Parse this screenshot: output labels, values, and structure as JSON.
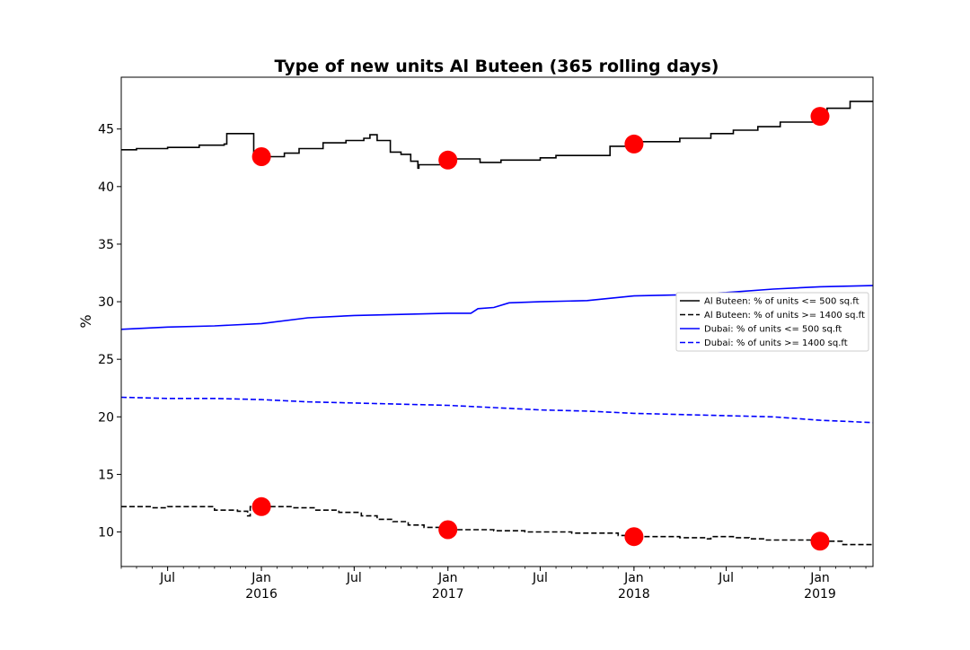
{
  "chart_data": {
    "type": "line",
    "title": "Type of new units Al Buteen (365 rolling days)",
    "xlabel": "",
    "ylabel": "%",
    "xlim": [
      "2015-04-01",
      "2019-04-15"
    ],
    "ylim": [
      7,
      49.5
    ],
    "grid": false,
    "legend_position": "center-right",
    "x_ticks": [
      {
        "date": "2015-07-01",
        "label": "Jul"
      },
      {
        "date": "2016-01-01",
        "label": "Jan\n2016"
      },
      {
        "date": "2016-07-01",
        "label": "Jul"
      },
      {
        "date": "2017-01-01",
        "label": "Jan\n2017"
      },
      {
        "date": "2017-07-01",
        "label": "Jul"
      },
      {
        "date": "2018-01-01",
        "label": "Jan\n2018"
      },
      {
        "date": "2018-07-01",
        "label": "Jul"
      },
      {
        "date": "2019-01-01",
        "label": "Jan\n2019"
      }
    ],
    "y_ticks": [
      10,
      15,
      20,
      25,
      30,
      35,
      40,
      45
    ],
    "series": [
      {
        "name": "Al Buteen: % of units <= 500 sq.ft",
        "color": "#000000",
        "style": "solid",
        "step": true,
        "points": [
          [
            "2015-04-01",
            43.2
          ],
          [
            "2015-05-01",
            43.3
          ],
          [
            "2015-07-01",
            43.4
          ],
          [
            "2015-09-01",
            43.6
          ],
          [
            "2015-10-20",
            43.7
          ],
          [
            "2015-10-25",
            44.6
          ],
          [
            "2015-12-15",
            44.6
          ],
          [
            "2015-12-17",
            42.6
          ],
          [
            "2016-01-10",
            42.6
          ],
          [
            "2016-02-15",
            42.9
          ],
          [
            "2016-03-15",
            43.3
          ],
          [
            "2016-05-01",
            43.8
          ],
          [
            "2016-06-15",
            44.0
          ],
          [
            "2016-07-20",
            44.2
          ],
          [
            "2016-08-01",
            44.5
          ],
          [
            "2016-08-15",
            44.0
          ],
          [
            "2016-09-10",
            43.0
          ],
          [
            "2016-10-01",
            42.8
          ],
          [
            "2016-10-20",
            42.2
          ],
          [
            "2016-11-03",
            41.6
          ],
          [
            "2016-11-05",
            41.9
          ],
          [
            "2016-12-31",
            41.9
          ],
          [
            "2017-01-10",
            42.4
          ],
          [
            "2017-03-01",
            42.4
          ],
          [
            "2017-03-05",
            42.1
          ],
          [
            "2017-04-15",
            42.3
          ],
          [
            "2017-07-01",
            42.5
          ],
          [
            "2017-08-01",
            42.7
          ],
          [
            "2017-11-10",
            42.7
          ],
          [
            "2017-11-15",
            43.5
          ],
          [
            "2017-12-31",
            43.6
          ],
          [
            "2018-01-15",
            43.9
          ],
          [
            "2018-04-01",
            44.2
          ],
          [
            "2018-06-01",
            44.6
          ],
          [
            "2018-07-15",
            44.9
          ],
          [
            "2018-09-01",
            45.2
          ],
          [
            "2018-10-15",
            45.6
          ],
          [
            "2018-12-31",
            45.8
          ],
          [
            "2019-01-01",
            46.0
          ],
          [
            "2019-01-15",
            46.8
          ],
          [
            "2019-03-01",
            47.4
          ],
          [
            "2019-04-15",
            47.4
          ]
        ]
      },
      {
        "name": "Al Buteen: % of units >= 1400 sq.ft",
        "color": "#000000",
        "style": "dashed",
        "step": true,
        "points": [
          [
            "2015-04-01",
            12.2
          ],
          [
            "2015-06-01",
            12.1
          ],
          [
            "2015-07-01",
            12.2
          ],
          [
            "2015-09-15",
            12.2
          ],
          [
            "2015-10-01",
            11.9
          ],
          [
            "2015-11-15",
            11.8
          ],
          [
            "2015-12-05",
            11.4
          ],
          [
            "2015-12-10",
            12.2
          ],
          [
            "2016-01-10",
            12.2
          ],
          [
            "2016-03-01",
            12.1
          ],
          [
            "2016-04-15",
            11.9
          ],
          [
            "2016-06-01",
            11.7
          ],
          [
            "2016-07-15",
            11.4
          ],
          [
            "2016-08-15",
            11.1
          ],
          [
            "2016-09-15",
            10.9
          ],
          [
            "2016-10-15",
            10.6
          ],
          [
            "2016-11-15",
            10.4
          ],
          [
            "2016-12-31",
            10.3
          ],
          [
            "2017-01-15",
            10.2
          ],
          [
            "2017-04-01",
            10.1
          ],
          [
            "2017-06-01",
            10.0
          ],
          [
            "2017-09-01",
            9.9
          ],
          [
            "2017-12-01",
            9.7
          ],
          [
            "2018-01-15",
            9.6
          ],
          [
            "2018-04-01",
            9.5
          ],
          [
            "2018-05-25",
            9.4
          ],
          [
            "2018-06-01",
            9.6
          ],
          [
            "2018-07-15",
            9.5
          ],
          [
            "2018-08-15",
            9.4
          ],
          [
            "2018-09-15",
            9.3
          ],
          [
            "2019-01-01",
            9.2
          ],
          [
            "2019-02-15",
            8.9
          ],
          [
            "2019-04-15",
            8.9
          ]
        ]
      },
      {
        "name": "Dubai: % of units <= 500 sq.ft",
        "color": "#0000ff",
        "style": "solid",
        "step": false,
        "points": [
          [
            "2015-04-01",
            27.6
          ],
          [
            "2015-07-01",
            27.8
          ],
          [
            "2015-10-01",
            27.9
          ],
          [
            "2016-01-01",
            28.1
          ],
          [
            "2016-04-01",
            28.6
          ],
          [
            "2016-07-01",
            28.8
          ],
          [
            "2016-10-01",
            28.9
          ],
          [
            "2017-01-01",
            29.0
          ],
          [
            "2017-02-15",
            29.0
          ],
          [
            "2017-03-01",
            29.4
          ],
          [
            "2017-04-01",
            29.5
          ],
          [
            "2017-05-01",
            29.9
          ],
          [
            "2017-07-01",
            30.0
          ],
          [
            "2017-10-01",
            30.1
          ],
          [
            "2018-01-01",
            30.5
          ],
          [
            "2018-04-01",
            30.6
          ],
          [
            "2018-07-01",
            30.8
          ],
          [
            "2018-10-01",
            31.1
          ],
          [
            "2019-01-01",
            31.3
          ],
          [
            "2019-04-15",
            31.4
          ]
        ]
      },
      {
        "name": "Dubai: % of units >= 1400 sq.ft",
        "color": "#0000ff",
        "style": "dashed",
        "step": false,
        "points": [
          [
            "2015-04-01",
            21.7
          ],
          [
            "2015-07-01",
            21.6
          ],
          [
            "2015-10-01",
            21.6
          ],
          [
            "2016-01-01",
            21.5
          ],
          [
            "2016-04-01",
            21.3
          ],
          [
            "2016-07-01",
            21.2
          ],
          [
            "2016-10-01",
            21.1
          ],
          [
            "2017-01-01",
            21.0
          ],
          [
            "2017-04-01",
            20.8
          ],
          [
            "2017-07-01",
            20.6
          ],
          [
            "2017-10-01",
            20.5
          ],
          [
            "2018-01-01",
            20.3
          ],
          [
            "2018-04-01",
            20.2
          ],
          [
            "2018-07-01",
            20.1
          ],
          [
            "2018-10-01",
            20.0
          ],
          [
            "2019-01-01",
            19.7
          ],
          [
            "2019-04-15",
            19.5
          ]
        ]
      }
    ],
    "markers": {
      "color": "#ff0000",
      "points": [
        [
          "2016-01-01",
          42.6
        ],
        [
          "2017-01-01",
          42.3
        ],
        [
          "2018-01-01",
          43.7
        ],
        [
          "2019-01-01",
          46.1
        ],
        [
          "2016-01-01",
          12.2
        ],
        [
          "2017-01-01",
          10.2
        ],
        [
          "2018-01-01",
          9.6
        ],
        [
          "2019-01-01",
          9.2
        ]
      ]
    }
  }
}
